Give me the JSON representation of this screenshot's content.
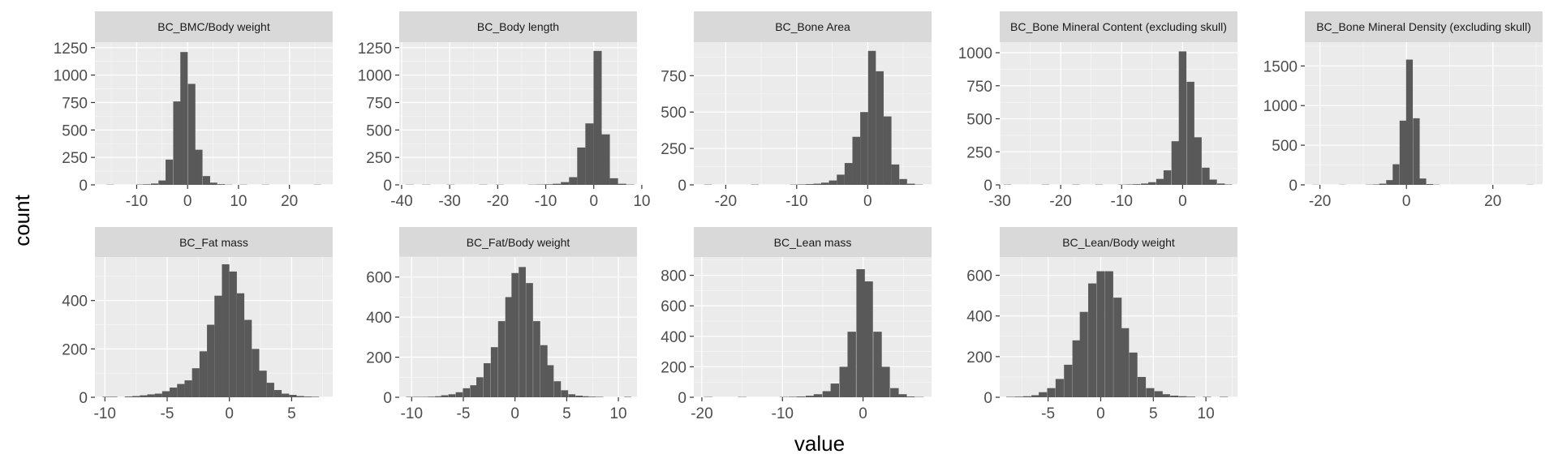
{
  "x_axis_title": "value",
  "y_axis_title": "count",
  "colors": {
    "panel_background": "#ebebeb",
    "strip_background": "#d9d9d9",
    "gridline": "#ffffff",
    "bar_fill": "#595959",
    "tick_color": "#333333"
  },
  "chart_data": [
    {
      "type": "bar",
      "title": "BC_BMC/Body weight",
      "bin_width": 1.45,
      "xlim": [
        -18.2,
        28.5
      ],
      "ylim": [
        0,
        1300
      ],
      "x_ticks": [
        -10,
        0,
        10,
        20
      ],
      "y_ticks": [
        0,
        250,
        500,
        750,
        1000,
        1250
      ],
      "x": [
        -15.2,
        -13.8,
        -12.3,
        -10.9,
        -9.4,
        -8.0,
        -6.5,
        -5.0,
        -3.6,
        -2.1,
        -0.7,
        0.8,
        2.2,
        3.7,
        5.1,
        6.6,
        8.1,
        9.5,
        11.0,
        12.4,
        13.9,
        15.3,
        16.8,
        18.2,
        19.7,
        21.2,
        22.6,
        24.1,
        25.5
      ],
      "values": [
        2,
        0,
        0,
        0,
        3,
        5,
        12,
        40,
        230,
        760,
        1210,
        920,
        320,
        80,
        20,
        6,
        2,
        0,
        2,
        0,
        0,
        2,
        0,
        0,
        0,
        0,
        0,
        0,
        2
      ]
    },
    {
      "type": "bar",
      "title": "BC_Body length",
      "bin_width": 1.7,
      "xlim": [
        -40.5,
        9.0
      ],
      "ylim": [
        0,
        1300
      ],
      "x_ticks": [
        -40,
        -30,
        -20,
        -10,
        0,
        10
      ],
      "y_ticks": [
        0,
        250,
        500,
        750,
        1000,
        1250
      ],
      "x": [
        -38.3,
        -36.6,
        -34.9,
        -33.2,
        -31.5,
        -29.8,
        -28.1,
        -26.4,
        -24.7,
        -23.0,
        -21.3,
        -19.6,
        -17.9,
        -16.2,
        -14.5,
        -12.8,
        -11.1,
        -9.4,
        -7.7,
        -6.0,
        -4.3,
        -2.6,
        -0.9,
        0.8,
        2.5,
        4.2,
        5.9,
        7.6
      ],
      "values": [
        2,
        0,
        2,
        0,
        0,
        2,
        0,
        0,
        0,
        2,
        0,
        2,
        0,
        0,
        0,
        2,
        3,
        5,
        10,
        25,
        70,
        340,
        560,
        1220,
        460,
        60,
        10,
        3
      ]
    },
    {
      "type": "bar",
      "title": "BC_Bone Area",
      "bin_width": 1.1,
      "xlim": [
        -24.5,
        9.0
      ],
      "ylim": [
        0,
        980
      ],
      "x_ticks": [
        -20,
        -10,
        0
      ],
      "y_ticks": [
        0,
        250,
        500,
        750
      ],
      "x": [
        -22.5,
        -21.4,
        -20.3,
        -19.2,
        -18.1,
        -17.0,
        -15.9,
        -14.8,
        -13.7,
        -12.6,
        -11.5,
        -10.4,
        -9.3,
        -8.2,
        -7.1,
        -6.0,
        -4.9,
        -3.8,
        -2.7,
        -1.6,
        -0.5,
        0.6,
        1.7,
        2.8,
        3.9,
        5.0,
        6.1,
        7.2
      ],
      "values": [
        2,
        0,
        0,
        0,
        0,
        0,
        2,
        0,
        0,
        0,
        0,
        2,
        3,
        5,
        8,
        15,
        30,
        70,
        150,
        330,
        500,
        920,
        780,
        470,
        140,
        40,
        8,
        2
      ]
    },
    {
      "type": "bar",
      "title": "BC_Bone Mineral Content (excluding skull)",
      "bin_width": 1.25,
      "xlim": [
        -30.0,
        9.0
      ],
      "ylim": [
        0,
        1080
      ],
      "x_ticks": [
        -30,
        -20,
        -10,
        0
      ],
      "y_ticks": [
        0,
        250,
        500,
        750,
        1000
      ],
      "x": [
        -28.7,
        -27.5,
        -26.2,
        -25.0,
        -23.7,
        -22.5,
        -21.2,
        -20.0,
        -18.7,
        -17.5,
        -16.2,
        -15.0,
        -13.7,
        -12.5,
        -11.2,
        -10.0,
        -8.7,
        -7.5,
        -6.2,
        -5.0,
        -3.7,
        -2.5,
        -1.2,
        0.0,
        1.3,
        2.5,
        3.8,
        5.0,
        6.3,
        7.5
      ],
      "values": [
        2,
        0,
        0,
        0,
        0,
        2,
        0,
        0,
        0,
        2,
        0,
        0,
        2,
        0,
        0,
        2,
        3,
        5,
        10,
        20,
        45,
        110,
        330,
        1010,
        780,
        360,
        130,
        40,
        10,
        3
      ]
    },
    {
      "type": "bar",
      "title": "BC_Bone Mineral Density (excluding skull)",
      "bin_width": 1.55,
      "xlim": [
        -23.5,
        31.5
      ],
      "ylim": [
        0,
        1800
      ],
      "x_ticks": [
        -20,
        0,
        20
      ],
      "y_ticks": [
        0,
        500,
        1000,
        1500
      ],
      "x": [
        -21.0,
        -19.4,
        -17.9,
        -16.3,
        -14.8,
        -13.2,
        -11.7,
        -10.1,
        -8.6,
        -7.0,
        -5.5,
        -3.9,
        -2.4,
        -0.8,
        0.7,
        2.3,
        3.8,
        5.4,
        6.9,
        8.5,
        10.0,
        11.6,
        13.1,
        14.7,
        16.2,
        17.8,
        19.3,
        20.9,
        22.4,
        24.0,
        25.5,
        27.1,
        28.6
      ],
      "values": [
        2,
        0,
        0,
        0,
        2,
        0,
        0,
        0,
        3,
        5,
        15,
        60,
        260,
        810,
        1580,
        840,
        80,
        10,
        3,
        0,
        0,
        0,
        0,
        0,
        0,
        0,
        0,
        0,
        0,
        0,
        0,
        0,
        2
      ]
    },
    {
      "type": "bar",
      "title": "BC_Fat mass",
      "bin_width": 0.6,
      "xlim": [
        -10.8,
        8.3
      ],
      "ylim": [
        0,
        580
      ],
      "x_ticks": [
        -10,
        -5,
        0,
        5
      ],
      "y_ticks": [
        0,
        200,
        400
      ],
      "x": [
        -9.9,
        -9.3,
        -8.7,
        -8.1,
        -7.5,
        -6.9,
        -6.3,
        -5.7,
        -5.1,
        -4.5,
        -3.9,
        -3.3,
        -2.7,
        -2.1,
        -1.5,
        -0.9,
        -0.3,
        0.3,
        0.9,
        1.5,
        2.1,
        2.7,
        3.3,
        3.9,
        4.5,
        5.1,
        5.7,
        6.3,
        6.9
      ],
      "values": [
        2,
        2,
        0,
        3,
        5,
        8,
        12,
        15,
        25,
        40,
        55,
        70,
        120,
        190,
        300,
        420,
        550,
        520,
        430,
        320,
        200,
        110,
        60,
        30,
        15,
        10,
        5,
        3,
        2
      ]
    },
    {
      "type": "bar",
      "title": "BC_Fat/Body weight",
      "bin_width": 0.68,
      "xlim": [
        -11.2,
        11.8
      ],
      "ylim": [
        0,
        700
      ],
      "x_ticks": [
        -10,
        -5,
        0,
        5,
        10
      ],
      "y_ticks": [
        0,
        200,
        400,
        600
      ],
      "x": [
        -10.2,
        -9.5,
        -8.8,
        -8.1,
        -7.4,
        -6.8,
        -6.1,
        -5.4,
        -4.7,
        -4.0,
        -3.4,
        -2.7,
        -2.0,
        -1.3,
        -0.6,
        0.0,
        0.7,
        1.4,
        2.1,
        2.8,
        3.4,
        4.1,
        4.8,
        5.5,
        6.2,
        6.8,
        7.5,
        8.2,
        8.9,
        9.6,
        10.2,
        10.9
      ],
      "values": [
        2,
        2,
        2,
        3,
        5,
        10,
        15,
        25,
        45,
        60,
        100,
        170,
        250,
        380,
        500,
        620,
        650,
        570,
        380,
        260,
        160,
        80,
        35,
        15,
        8,
        5,
        3,
        2,
        0,
        0,
        0,
        2
      ]
    },
    {
      "type": "bar",
      "title": "BC_Lean mass",
      "bin_width": 1.05,
      "xlim": [
        -21.0,
        8.5
      ],
      "ylim": [
        0,
        920
      ],
      "x_ticks": [
        -20,
        -10,
        0
      ],
      "y_ticks": [
        0,
        200,
        400,
        600,
        800
      ],
      "x": [
        -19.2,
        -18.2,
        -17.1,
        -16.1,
        -15.0,
        -14.0,
        -12.9,
        -11.9,
        -10.8,
        -9.8,
        -8.7,
        -7.7,
        -6.6,
        -5.6,
        -4.5,
        -3.5,
        -2.4,
        -1.4,
        -0.3,
        0.7,
        1.8,
        2.8,
        3.9,
        4.9,
        5.9,
        7.0
      ],
      "values": [
        2,
        0,
        0,
        0,
        2,
        0,
        0,
        0,
        0,
        2,
        3,
        5,
        10,
        20,
        40,
        90,
        200,
        430,
        840,
        760,
        430,
        200,
        60,
        20,
        5,
        2
      ]
    },
    {
      "type": "bar",
      "title": "BC_Lean/Body weight",
      "bin_width": 0.78,
      "xlim": [
        -9.6,
        13.0
      ],
      "ylim": [
        0,
        690
      ],
      "x_ticks": [
        -5,
        0,
        5,
        10
      ],
      "y_ticks": [
        0,
        200,
        400,
        600
      ],
      "x": [
        -8.6,
        -7.8,
        -7.0,
        -6.2,
        -5.5,
        -4.7,
        -3.9,
        -3.1,
        -2.3,
        -1.6,
        -0.8,
        0.0,
        0.8,
        1.6,
        2.3,
        3.1,
        3.9,
        4.7,
        5.5,
        6.2,
        7.0,
        7.8,
        8.6,
        9.4,
        10.1,
        10.9,
        11.7
      ],
      "values": [
        2,
        3,
        5,
        10,
        25,
        45,
        90,
        160,
        280,
        420,
        560,
        620,
        620,
        490,
        340,
        220,
        100,
        45,
        30,
        15,
        8,
        5,
        3,
        0,
        2,
        0,
        2
      ]
    }
  ]
}
